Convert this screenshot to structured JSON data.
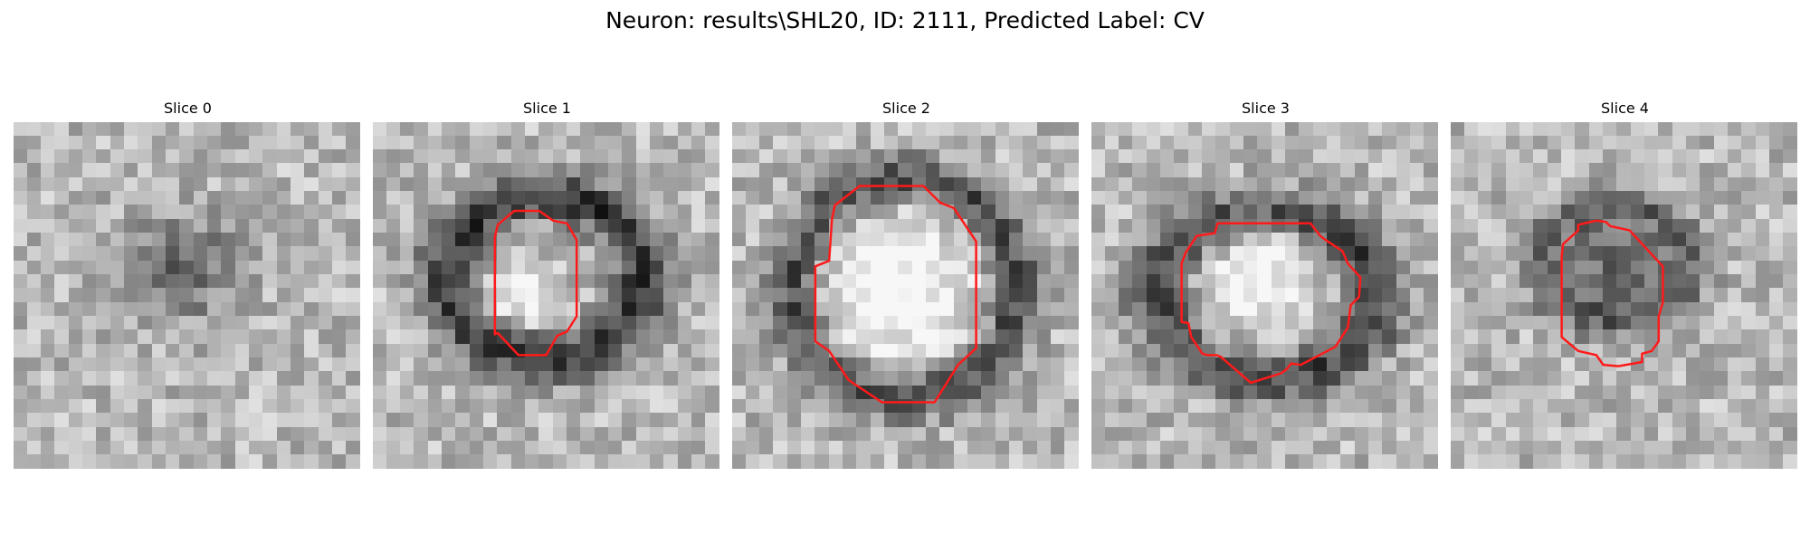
{
  "figure": {
    "title": "Neuron: results\\SHL20, ID: 2111, Predicted Label: CV",
    "contour_color": "#ff1a1a",
    "colormap": "gray",
    "slices": [
      {
        "label": "Slice 0",
        "grid": 25,
        "contour": null,
        "pattern": {
          "ring": null,
          "blob": {
            "cx": 12.0,
            "cy": 10.5,
            "r": 3.8,
            "v": -0.33
          }
        }
      },
      {
        "label": "Slice 1",
        "grid": 25,
        "contour": [
          [
            9.0,
            7.4
          ],
          [
            10.2,
            6.4
          ],
          [
            12.0,
            6.4
          ],
          [
            13.0,
            7.1
          ],
          [
            14.0,
            7.3
          ],
          [
            14.7,
            8.5
          ],
          [
            14.7,
            10.0
          ],
          [
            14.7,
            14.0
          ],
          [
            14.0,
            15.1
          ],
          [
            13.3,
            15.4
          ],
          [
            12.5,
            16.8
          ],
          [
            10.5,
            16.8
          ],
          [
            9.0,
            15.2
          ],
          [
            8.8,
            15.3
          ],
          [
            8.8,
            8.3
          ]
        ],
        "pattern": {
          "ring": {
            "cx": 12.5,
            "cy": 11.2,
            "rx": 7.0,
            "ry": 5.8,
            "w": 1.8,
            "v": -0.5
          },
          "blob": {
            "cx": 10.8,
            "cy": 12.5,
            "r": 2.2,
            "v": 0.3
          }
        }
      },
      {
        "label": "Slice 2",
        "grid": 25,
        "contour": [
          [
            7.4,
            6.0
          ],
          [
            9.2,
            4.6
          ],
          [
            13.8,
            4.6
          ],
          [
            15.0,
            5.8
          ],
          [
            16.0,
            6.2
          ],
          [
            17.6,
            8.6
          ],
          [
            17.6,
            10.2
          ],
          [
            17.6,
            16.3
          ],
          [
            16.3,
            17.5
          ],
          [
            14.6,
            20.2
          ],
          [
            10.8,
            20.2
          ],
          [
            8.4,
            18.6
          ],
          [
            7.0,
            16.5
          ],
          [
            6.0,
            15.8
          ],
          [
            6.0,
            10.4
          ],
          [
            7.0,
            10.0
          ],
          [
            7.2,
            7.0
          ]
        ],
        "pattern": {
          "ring": {
            "cx": 12.5,
            "cy": 12.0,
            "rx": 8.0,
            "ry": 7.8,
            "w": 1.8,
            "v": -0.45
          },
          "blob": {
            "cx": 12.0,
            "cy": 12.0,
            "r": 5.5,
            "v": 0.35
          }
        }
      },
      {
        "label": "Slice 3",
        "grid": 25,
        "contour": [
          [
            6.8,
            9.4
          ],
          [
            7.6,
            8.2
          ],
          [
            8.9,
            8.0
          ],
          [
            9.1,
            7.3
          ],
          [
            15.8,
            7.3
          ],
          [
            16.5,
            8.2
          ],
          [
            16.9,
            8.5
          ],
          [
            18.1,
            9.3
          ],
          [
            18.5,
            10.2
          ],
          [
            19.4,
            11.2
          ],
          [
            19.3,
            12.6
          ],
          [
            18.7,
            13.2
          ],
          [
            18.5,
            14.8
          ],
          [
            17.6,
            16.2
          ],
          [
            15.1,
            17.5
          ],
          [
            14.4,
            17.4
          ],
          [
            14.1,
            17.8
          ],
          [
            13.7,
            18.1
          ],
          [
            11.5,
            18.8
          ],
          [
            9.3,
            16.9
          ],
          [
            9.0,
            16.8
          ],
          [
            8.4,
            16.8
          ],
          [
            8.0,
            16.7
          ],
          [
            7.2,
            15.5
          ],
          [
            7.0,
            14.5
          ],
          [
            6.5,
            14.4
          ],
          [
            6.5,
            10.2
          ]
        ],
        "pattern": {
          "ring": {
            "cx": 12.7,
            "cy": 12.5,
            "rx": 7.8,
            "ry": 6.0,
            "w": 1.8,
            "v": -0.45
          },
          "blob": {
            "cx": 12.0,
            "cy": 11.0,
            "r": 4.0,
            "v": 0.3
          }
        }
      },
      {
        "label": "Slice 4",
        "grid": 25,
        "contour": [
          [
            8.1,
            8.8
          ],
          [
            9.2,
            7.8
          ],
          [
            9.2,
            7.4
          ],
          [
            10.5,
            7.1
          ],
          [
            11.2,
            7.2
          ],
          [
            11.5,
            7.5
          ],
          [
            12.9,
            7.8
          ],
          [
            15.3,
            10.4
          ],
          [
            15.3,
            12.4
          ],
          [
            15.3,
            13.0
          ],
          [
            15.0,
            14.0
          ],
          [
            15.0,
            15.8
          ],
          [
            14.5,
            16.5
          ],
          [
            13.8,
            16.7
          ],
          [
            13.8,
            17.3
          ],
          [
            12.1,
            17.6
          ],
          [
            11.0,
            17.5
          ],
          [
            10.5,
            16.8
          ],
          [
            9.2,
            16.5
          ],
          [
            8.0,
            15.5
          ],
          [
            8.0,
            9.7
          ]
        ],
        "pattern": {
          "ring": {
            "cx": 12.0,
            "cy": 10.2,
            "rx": 5.2,
            "ry": 4.2,
            "w": 1.5,
            "v": -0.3
          },
          "blob": {
            "cx": 12.0,
            "cy": 10.5,
            "r": 3.2,
            "v": -0.32
          }
        }
      }
    ]
  }
}
